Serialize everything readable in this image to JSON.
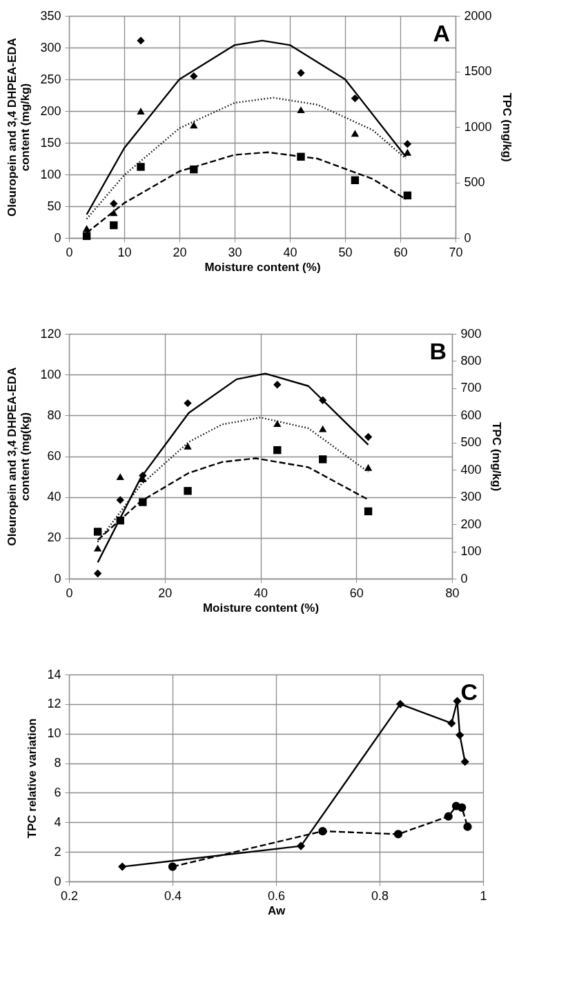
{
  "chart_data": [
    {
      "type": "scatter",
      "xlabel": "Moisture content (%)",
      "ylabel": "Oleuropein and 3,4 DHPEA-EDA content (mg/kg)",
      "y2label": "TPC (mg/kg)",
      "xlim": [
        0,
        70
      ],
      "xticks": [
        0,
        10,
        20,
        30,
        40,
        50,
        60,
        70
      ],
      "ylim": [
        0,
        350
      ],
      "yticks": [
        0,
        50,
        100,
        150,
        200,
        250,
        300,
        350
      ],
      "y2lim": [
        0,
        2000
      ],
      "y2ticks": [
        0,
        500,
        1000,
        1500,
        2000
      ],
      "grid": true,
      "annotations": [
        "A"
      ],
      "series": [
        {
          "marker": "diamond",
          "color": "#000000",
          "axis": "y2",
          "x": [
            8.1,
            13,
            22.6,
            42,
            51.8,
            61.3
          ],
          "values": [
            309,
            1777,
            1457,
            1486,
            1257,
            846
          ]
        },
        {
          "type": "line",
          "marker": "none",
          "line_style": "solid",
          "color": "#000000",
          "axis": "y2",
          "x": [
            3.2,
            10,
            20,
            30,
            35,
            40,
            50,
            61
          ],
          "values": [
            211,
            809,
            1429,
            1737,
            1777,
            1737,
            1429,
            731
          ]
        },
        {
          "marker": "triangle",
          "color": "#000000",
          "x": [
            3.2,
            8.1,
            13,
            22.6,
            42,
            51.8,
            61.3
          ],
          "values": [
            15,
            40,
            200,
            178,
            202,
            165,
            135
          ]
        },
        {
          "type": "line",
          "marker": "none",
          "line_style": "dotted",
          "color": "#000000",
          "x": [
            3.2,
            10,
            20,
            30,
            37,
            45,
            55,
            61
          ],
          "values": [
            30,
            99,
            173,
            213,
            221,
            210,
            170,
            125
          ]
        },
        {
          "marker": "square",
          "color": "#000000",
          "x": [
            3.2,
            8.1,
            13,
            22.6,
            42,
            51.8,
            61.3
          ],
          "values": [
            3,
            20,
            112,
            108,
            128,
            91,
            67
          ]
        },
        {
          "type": "line",
          "marker": "none",
          "line_style": "dashed",
          "color": "#000000",
          "x": [
            3.2,
            10,
            20,
            30,
            36,
            45,
            55,
            61
          ],
          "values": [
            8,
            55,
            105,
            131,
            135,
            125,
            93,
            61
          ]
        }
      ]
    },
    {
      "type": "scatter",
      "xlabel": "Moisture content (%)",
      "ylabel": "Oleuropein and 3,4 DHPEA-EDA content (mg(kg)",
      "y2label": "TPC (mg/kg)",
      "xlim": [
        0,
        80
      ],
      "xticks": [
        0,
        20,
        40,
        60,
        80
      ],
      "ylim": [
        0,
        120
      ],
      "yticks": [
        0,
        20,
        40,
        60,
        80,
        100,
        120
      ],
      "y2lim": [
        0,
        900
      ],
      "y2ticks": [
        0,
        100,
        200,
        300,
        400,
        500,
        600,
        700,
        800,
        900
      ],
      "grid": true,
      "annotations": [
        "B"
      ],
      "series": [
        {
          "marker": "diamond",
          "color": "#000000",
          "axis": "y2",
          "x": [
            6,
            10.7,
            15.4,
            24.8,
            43.5,
            53,
            62.5
          ],
          "values": [
            19,
            289,
            379,
            645,
            713,
            656,
            521
          ]
        },
        {
          "type": "line",
          "marker": "none",
          "line_style": "solid",
          "color": "#000000",
          "axis": "y2",
          "x": [
            6,
            15,
            25,
            35,
            41,
            50,
            62.5
          ],
          "values": [
            60,
            371,
            609,
            733,
            754,
            708,
            492
          ]
        },
        {
          "marker": "triangle",
          "color": "#000000",
          "x": [
            6,
            10.7,
            15.4,
            24.8,
            43.5,
            53,
            62.5
          ],
          "values": [
            15,
            50,
            49,
            65,
            76,
            73.5,
            54.5
          ]
        },
        {
          "type": "line",
          "marker": "none",
          "line_style": "dotted",
          "color": "#000000",
          "x": [
            6,
            15,
            25,
            32,
            40,
            50,
            62.5
          ],
          "values": [
            18,
            46,
            67,
            75.6,
            79,
            73.7,
            52.3
          ]
        },
        {
          "marker": "square",
          "color": "#000000",
          "x": [
            6,
            10.7,
            15.4,
            24.8,
            43.5,
            53,
            62.5
          ],
          "values": [
            23,
            28.5,
            37.5,
            43,
            63,
            58.5,
            33
          ]
        },
        {
          "type": "line",
          "marker": "none",
          "line_style": "dashed",
          "color": "#000000",
          "x": [
            6,
            15,
            25,
            32,
            39,
            50,
            62.5
          ],
          "values": [
            19,
            37.9,
            51.8,
            57.2,
            59,
            54.6,
            38.7
          ]
        }
      ]
    },
    {
      "type": "line",
      "xlabel": "Aw",
      "ylabel": "TPC relative variation",
      "xlim": [
        0.2,
        1
      ],
      "xticks": [
        0.2,
        0.4,
        0.6,
        0.8,
        1
      ],
      "ylim": [
        0,
        14
      ],
      "yticks": [
        0,
        2,
        4,
        6,
        8,
        10,
        12,
        14
      ],
      "grid": true,
      "annotations": [
        "C"
      ],
      "series": [
        {
          "marker": "diamond",
          "line_style": "solid",
          "color": "#000000",
          "x": [
            0.303,
            0.648,
            0.84,
            0.939,
            0.95,
            0.955,
            0.965
          ],
          "values": [
            1,
            2.4,
            12,
            10.7,
            12.2,
            9.9,
            8.1
          ]
        },
        {
          "marker": "circle",
          "line_style": "dashed",
          "color": "#000000",
          "x": [
            0.4,
            0.69,
            0.836,
            0.933,
            0.948,
            0.959,
            0.97
          ],
          "values": [
            1,
            3.4,
            3.2,
            4.4,
            5.1,
            5,
            3.7
          ]
        }
      ]
    }
  ]
}
